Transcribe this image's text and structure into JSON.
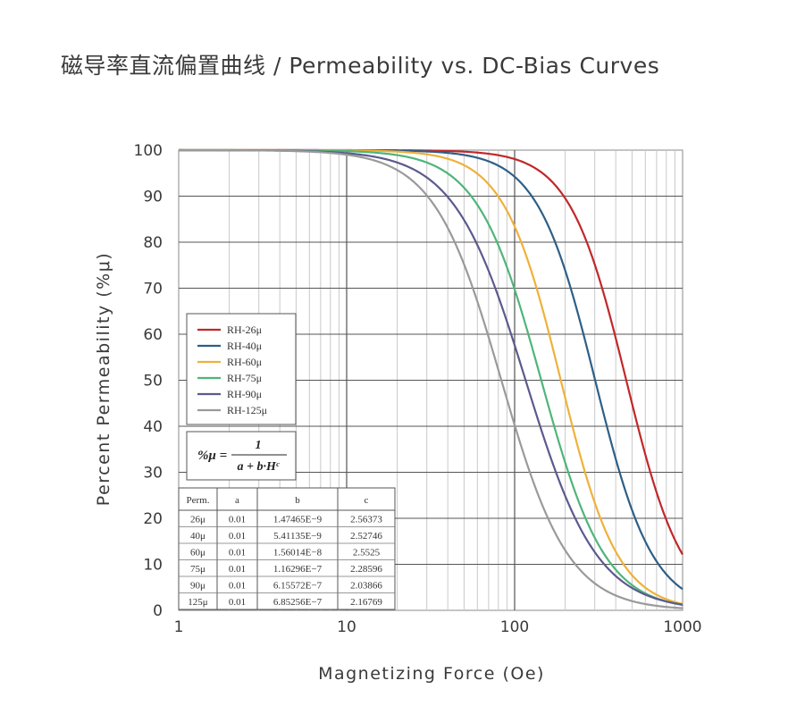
{
  "title": "磁导率直流偏置曲线 / Permeability vs. DC-Bias Curves",
  "chart_data": {
    "type": "line",
    "xlabel": "Magnetizing Force (Oe)",
    "ylabel": "Percent Permeability (%μ)",
    "xscale": "log",
    "xlim": [
      1,
      1000
    ],
    "ylim": [
      0,
      100
    ],
    "x_ticks": [
      "1",
      "10",
      "100",
      "1000"
    ],
    "y_ticks": [
      "0",
      "10",
      "20",
      "30",
      "40",
      "50",
      "60",
      "70",
      "80",
      "90",
      "100"
    ],
    "grid": true,
    "legend_position": "left-middle",
    "formula": "%μ = 1 / (a + b·H^c)",
    "series": [
      {
        "name": "RH-26μ",
        "color": "#c0282a",
        "a": 0.01,
        "b": 1.47465e-09,
        "c": 2.56373
      },
      {
        "name": "RH-40μ",
        "color": "#2e5f86",
        "a": 0.01,
        "b": 5.41135e-09,
        "c": 2.52746
      },
      {
        "name": "RH-60μ",
        "color": "#efb13a",
        "a": 0.01,
        "b": 1.56014e-08,
        "c": 2.5525
      },
      {
        "name": "RH-75μ",
        "color": "#4fb57a",
        "a": 0.01,
        "b": 1.16296e-07,
        "c": 2.28596
      },
      {
        "name": "RH-90μ",
        "color": "#5b5a8e",
        "a": 0.01,
        "b": 6.15572e-07,
        "c": 2.03866
      },
      {
        "name": "RH-125μ",
        "color": "#9a9a9a",
        "a": 0.01,
        "b": 6.85256e-07,
        "c": 2.16769
      }
    ],
    "table": {
      "headers": [
        "Perm.",
        "a",
        "b",
        "c"
      ],
      "rows": [
        [
          "26μ",
          "0.01",
          "1.47465E−9",
          "2.56373"
        ],
        [
          "40μ",
          "0.01",
          "5.41135E−9",
          "2.52746"
        ],
        [
          "60μ",
          "0.01",
          "1.56014E−8",
          "2.5525"
        ],
        [
          "75μ",
          "0.01",
          "1.16296E−7",
          "2.28596"
        ],
        [
          "90μ",
          "0.01",
          "6.15572E−7",
          "2.03866"
        ],
        [
          "125μ",
          "0.01",
          "6.85256E−7",
          "2.16769"
        ]
      ]
    }
  }
}
